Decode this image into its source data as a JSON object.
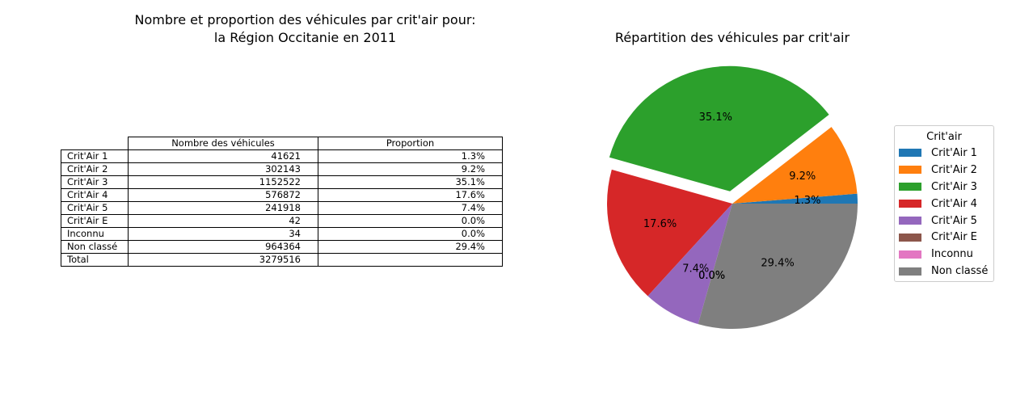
{
  "table_section": {
    "title_line1": "Nombre et proportion des véhicules par crit'air pour:",
    "title_line2": "la Région Occitanie en 2011",
    "col_headers": [
      "Nombre des véhicules",
      "Proportion"
    ],
    "rows": [
      {
        "label": "Crit'Air 1",
        "count": "41621",
        "proportion": "1.3%"
      },
      {
        "label": "Crit'Air 2",
        "count": "302143",
        "proportion": "9.2%"
      },
      {
        "label": "Crit'Air 3",
        "count": "1152522",
        "proportion": "35.1%"
      },
      {
        "label": "Crit'Air 4",
        "count": "576872",
        "proportion": "17.6%"
      },
      {
        "label": "Crit'Air 5",
        "count": "241918",
        "proportion": "7.4%"
      },
      {
        "label": "Crit'Air E",
        "count": "42",
        "proportion": "0.0%"
      },
      {
        "label": "Inconnu",
        "count": "34",
        "proportion": "0.0%"
      },
      {
        "label": "Non classé",
        "count": "964364",
        "proportion": "29.4%"
      },
      {
        "label": "Total",
        "count": "3279516",
        "proportion": ""
      }
    ]
  },
  "chart_data": {
    "type": "pie",
    "title": "Répartition des véhicules par crit'air",
    "labels": [
      "Crit'Air 1",
      "Crit'Air 2",
      "Crit'Air 3",
      "Crit'Air 4",
      "Crit'Air 5",
      "Crit'Air E",
      "Inconnu",
      "Non classé"
    ],
    "values": [
      41621,
      302143,
      1152522,
      576872,
      241918,
      42,
      34,
      964364
    ],
    "pct_labels": [
      "1.3%",
      "9.2%",
      "35.1%",
      "17.6%",
      "7.4%",
      "0.0%",
      "0.0%",
      "29.4%"
    ],
    "colors": [
      "#1f77b4",
      "#ff7f0e",
      "#2ca02c",
      "#d62728",
      "#9467bd",
      "#8c564b",
      "#e377c2",
      "#7f7f7f"
    ],
    "exploded": "Crit'Air 3",
    "legend_title": "Crit'air",
    "legend_placement": "right"
  }
}
